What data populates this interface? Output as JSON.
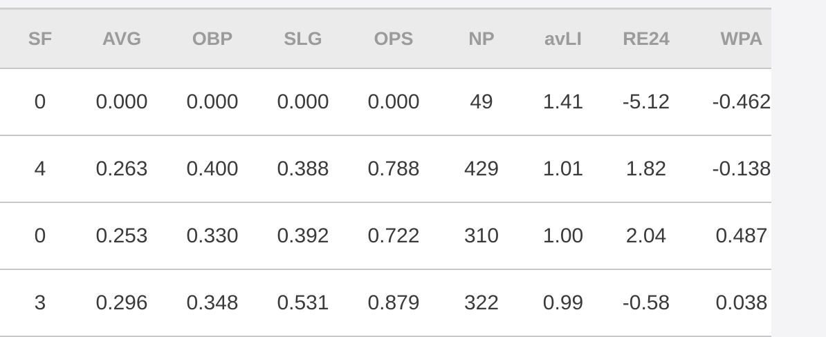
{
  "table": {
    "header": [
      "SF",
      "AVG",
      "OBP",
      "SLG",
      "OPS",
      "NP",
      "avLI",
      "RE24",
      "WPA"
    ],
    "rows": [
      [
        "0",
        "0.000",
        "0.000",
        "0.000",
        "0.000",
        "49",
        "1.41",
        "-5.12",
        "-0.462"
      ],
      [
        "4",
        "0.263",
        "0.400",
        "0.388",
        "0.788",
        "429",
        "1.01",
        "1.82",
        "-0.138"
      ],
      [
        "0",
        "0.253",
        "0.330",
        "0.392",
        "0.722",
        "310",
        "1.00",
        "2.04",
        "0.487"
      ],
      [
        "3",
        "0.296",
        "0.348",
        "0.531",
        "0.879",
        "322",
        "0.99",
        "-0.58",
        "0.038"
      ]
    ]
  }
}
